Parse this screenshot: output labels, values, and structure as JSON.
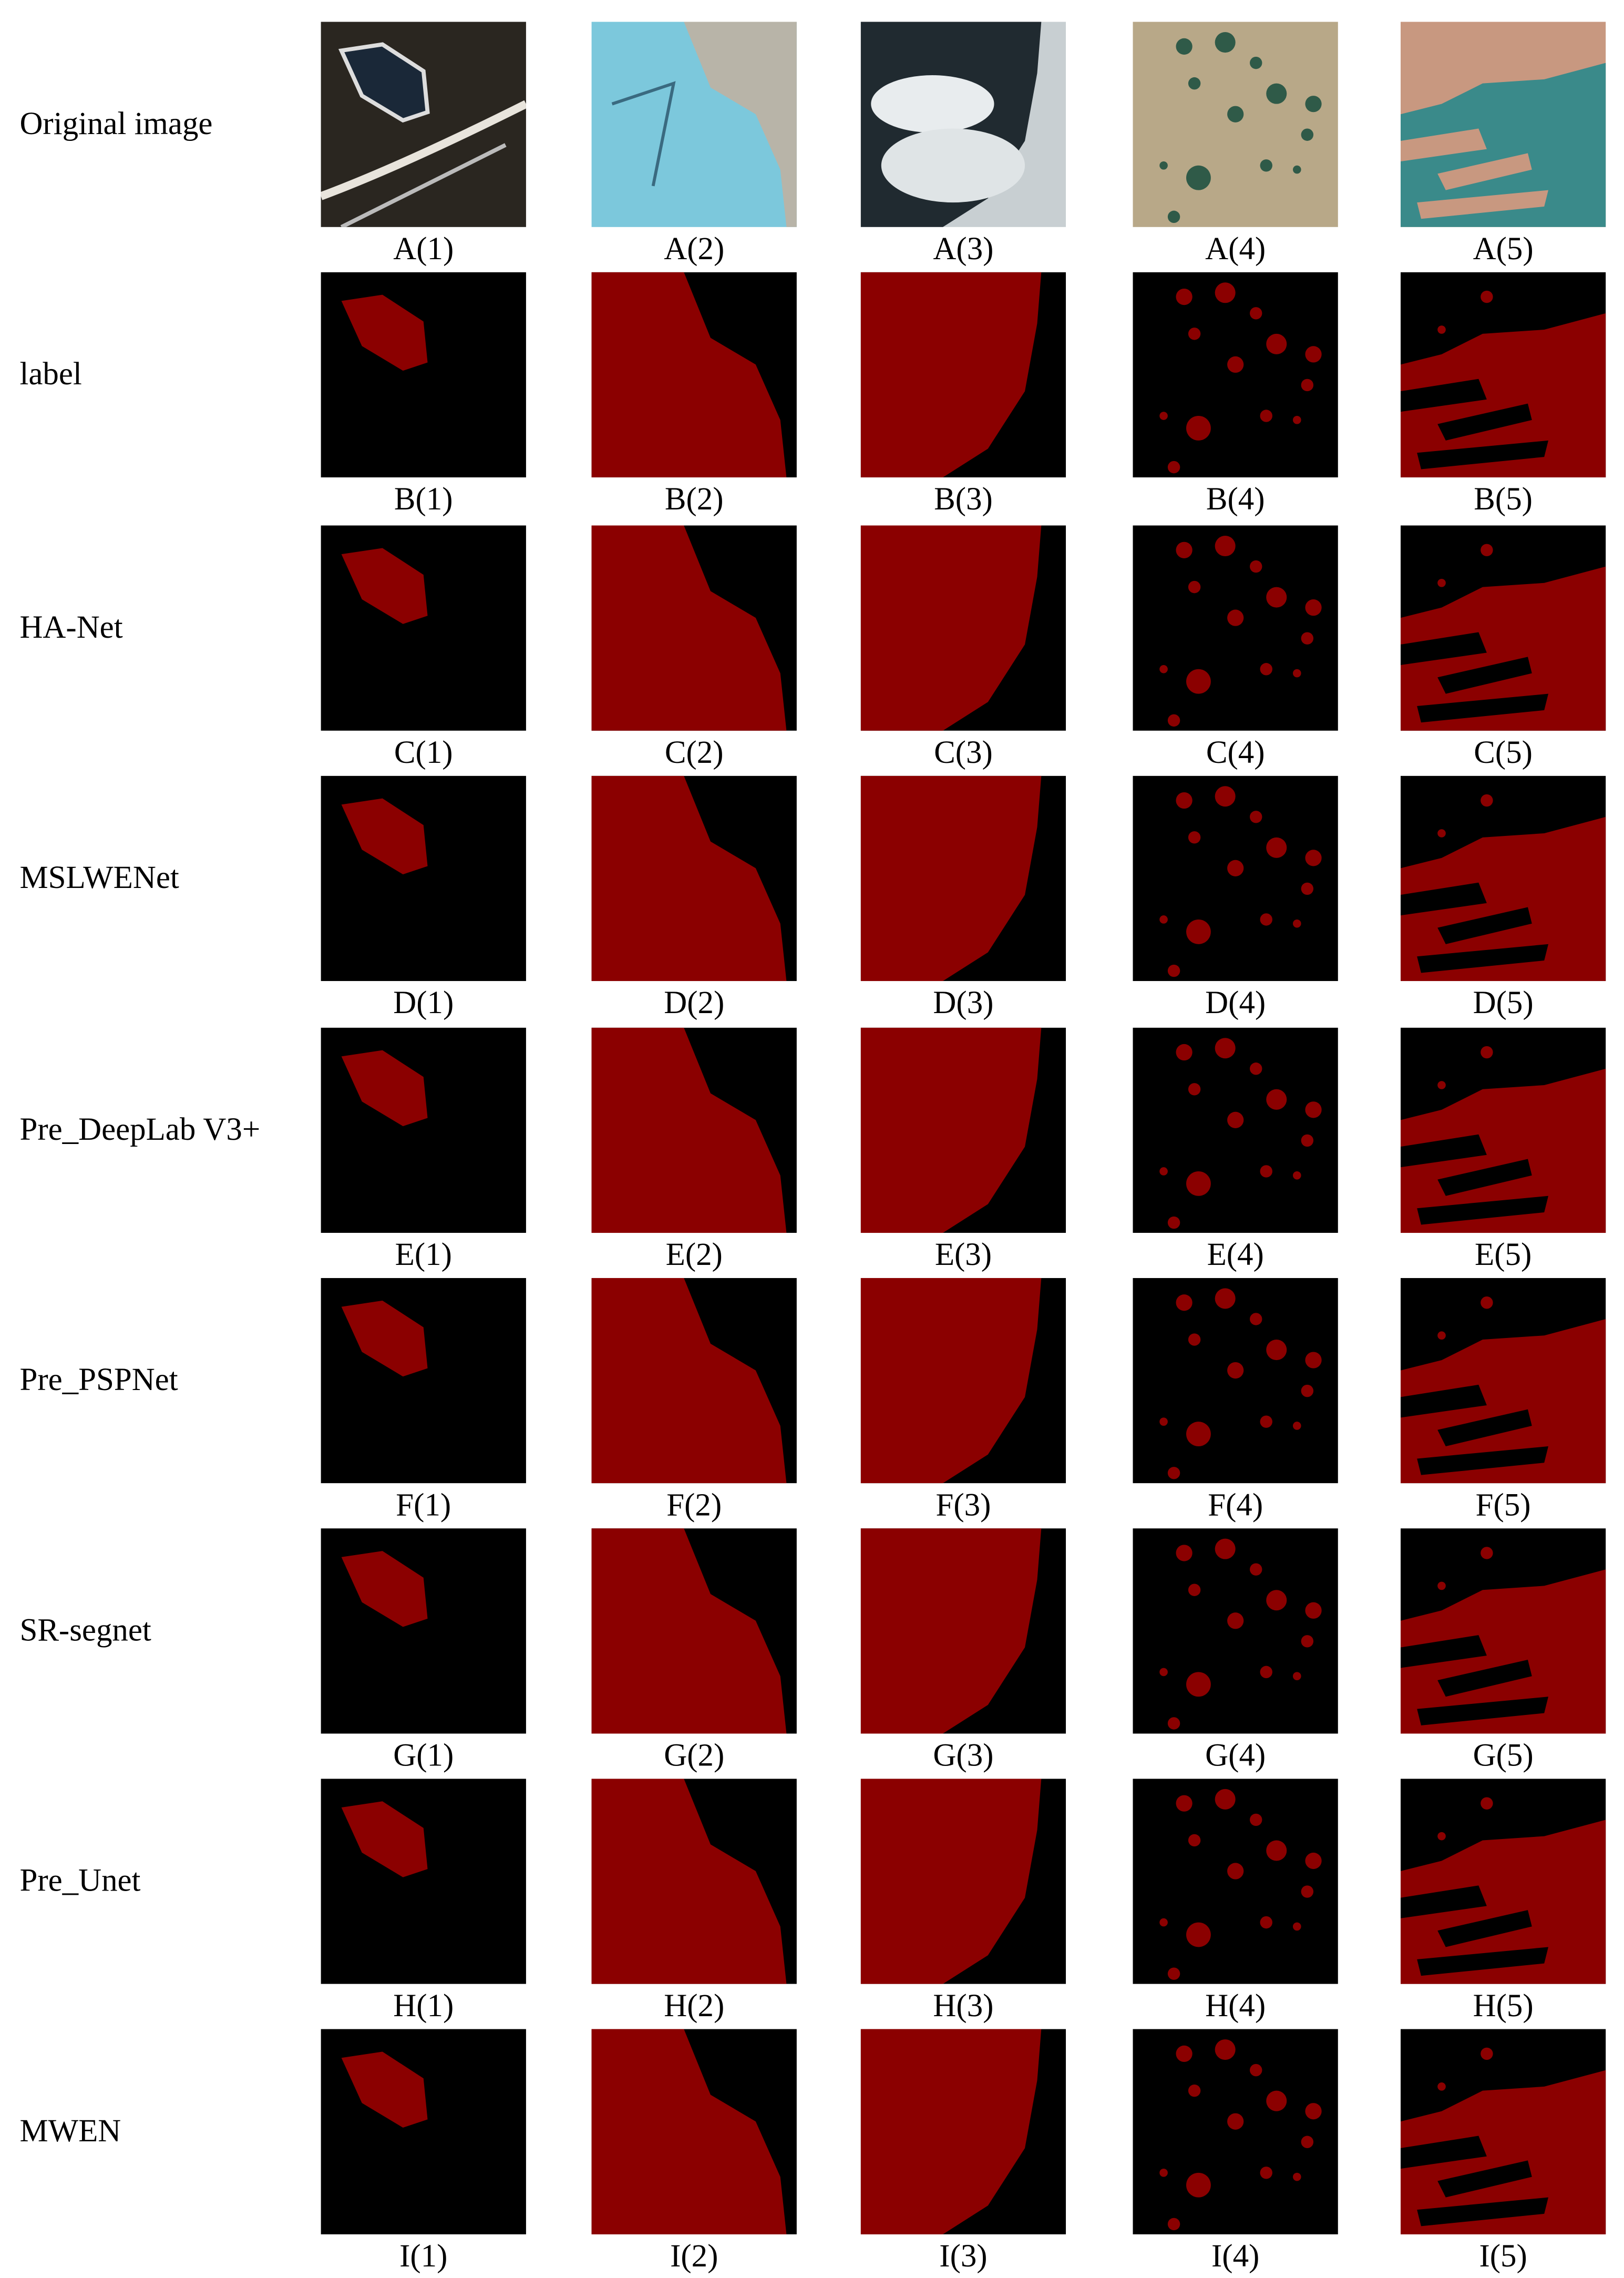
{
  "rows": [
    {
      "label": "Original image",
      "captions": [
        "A(1)",
        "A(2)",
        "A(3)",
        "A(4)",
        "A(5)"
      ]
    },
    {
      "label": "label",
      "captions": [
        "B(1)",
        "B(2)",
        "B(3)",
        "B(4)",
        "B(5)"
      ]
    },
    {
      "label": "HA-Net",
      "captions": [
        "C(1)",
        "C(2)",
        "C(3)",
        "C(4)",
        "C(5)"
      ]
    },
    {
      "label": "MSLWENet",
      "captions": [
        "D(1)",
        "D(2)",
        "D(3)",
        "D(4)",
        "D(5)"
      ]
    },
    {
      "label": "Pre_DeepLab V3+",
      "captions": [
        "E(1)",
        "E(2)",
        "E(3)",
        "E(4)",
        "E(5)"
      ]
    },
    {
      "label": "Pre_PSPNet",
      "captions": [
        "F(1)",
        "F(2)",
        "F(3)",
        "F(4)",
        "F(5)"
      ]
    },
    {
      "label": "SR-segnet",
      "captions": [
        "G(1)",
        "G(2)",
        "G(3)",
        "G(4)",
        "G(5)"
      ]
    },
    {
      "label": "Pre_Unet",
      "captions": [
        "H(1)",
        "H(2)",
        "H(3)",
        "H(4)",
        "H(5)"
      ]
    },
    {
      "label": "MWEN",
      "captions": [
        "I(1)",
        "I(2)",
        "I(3)",
        "I(4)",
        "I(5)"
      ]
    }
  ]
}
